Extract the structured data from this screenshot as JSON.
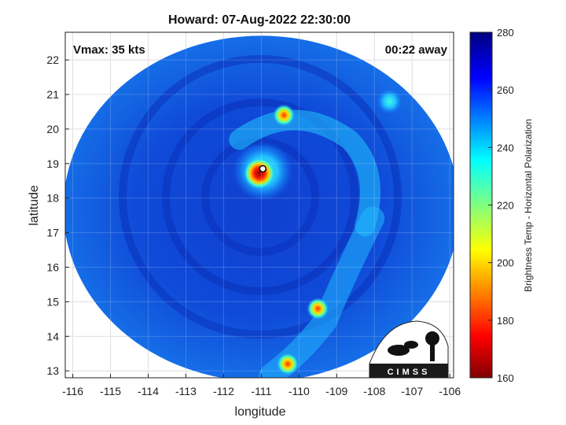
{
  "chart_data": {
    "type": "heatmap",
    "title": "Howard: 07-Aug-2022 22:30:00",
    "xlabel": "longitude",
    "ylabel": "latitude",
    "xlim": [
      -116.2,
      -105.9
    ],
    "ylim": [
      12.8,
      22.8
    ],
    "xticks": [
      -116,
      -115,
      -114,
      -113,
      -112,
      -111,
      -110,
      -109,
      -108,
      -107,
      -106
    ],
    "yticks": [
      13,
      14,
      15,
      16,
      17,
      18,
      19,
      20,
      21,
      22
    ],
    "grid": true,
    "colorbar": {
      "label": "Brightness Temp - Horizontal Polarization",
      "min": 160,
      "max": 280,
      "ticks": [
        160,
        180,
        200,
        220,
        240,
        260,
        280
      ],
      "colormap": "jet"
    },
    "storm_center": {
      "lon": -110.96,
      "lat": 18.78
    },
    "features": [
      {
        "name": "eyewall",
        "lon": -111.05,
        "lat": 18.72,
        "value": 175
      },
      {
        "name": "north-band",
        "lon": -110.4,
        "lat": 20.4,
        "value": 190
      },
      {
        "name": "northeast-band",
        "lon": -107.6,
        "lat": 20.8,
        "value": 215
      },
      {
        "name": "south-band",
        "lon": -109.5,
        "lat": 14.8,
        "value": 195
      },
      {
        "name": "south-band-tail",
        "lon": -110.3,
        "lat": 13.2,
        "value": 190
      }
    ],
    "swath": {
      "center_lon": -111.0,
      "center_lat": 17.7,
      "radius_lon": 5.25,
      "radius_lat": 5.0
    }
  },
  "annotations": {
    "vmax": "Vmax: 35 kts",
    "time_away": "00:22 away"
  },
  "logo_text": "CIMSS",
  "colors": {
    "background": "#0a3ccd",
    "axes": "#222222"
  }
}
